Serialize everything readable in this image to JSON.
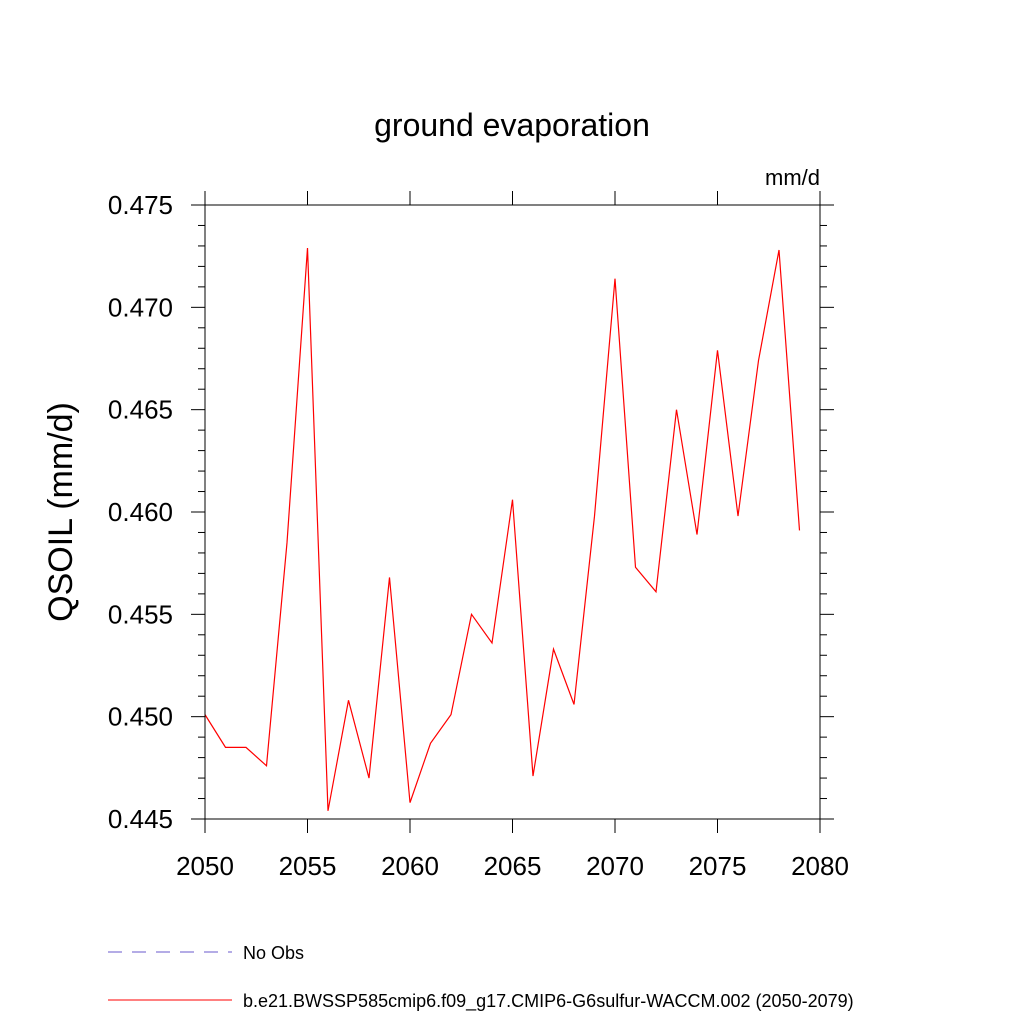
{
  "chart_data": {
    "type": "line",
    "title": "ground evaporation",
    "units_label": "mm/d",
    "xlabel": "",
    "ylabel": "QSOIL  (mm/d)",
    "xlim": [
      2050,
      2080
    ],
    "ylim": [
      0.445,
      0.475
    ],
    "x_ticks": [
      2050,
      2055,
      2060,
      2065,
      2070,
      2075,
      2080
    ],
    "x_tick_labels": [
      "2050",
      "2055",
      "2060",
      "2065",
      "2070",
      "2075",
      "2080"
    ],
    "y_ticks": [
      0.445,
      0.45,
      0.455,
      0.46,
      0.465,
      0.47,
      0.475
    ],
    "y_tick_labels": [
      "0.445",
      "0.450",
      "0.455",
      "0.460",
      "0.465",
      "0.470",
      "0.475"
    ],
    "grid": false,
    "legend_position": "bottom",
    "series": [
      {
        "name": "b.e21.BWSSP585cmip6.f09_g17.CMIP6-G6sulfur-WACCM.002 (2050-2079)",
        "color": "#ff0000",
        "style": "solid",
        "x": [
          2050,
          2051,
          2052,
          2053,
          2054,
          2055,
          2056,
          2057,
          2058,
          2059,
          2060,
          2061,
          2062,
          2063,
          2064,
          2065,
          2066,
          2067,
          2068,
          2069,
          2070,
          2071,
          2072,
          2073,
          2074,
          2075,
          2076,
          2077,
          2078,
          2079
        ],
        "values": [
          0.4501,
          0.4485,
          0.4485,
          0.4476,
          0.4585,
          0.4729,
          0.4454,
          0.4508,
          0.447,
          0.4568,
          0.4458,
          0.4487,
          0.4501,
          0.455,
          0.4536,
          0.4606,
          0.4471,
          0.4533,
          0.4506,
          0.4598,
          0.4714,
          0.4573,
          0.4561,
          0.465,
          0.4589,
          0.4679,
          0.4598,
          0.4674,
          0.4728,
          0.4591
        ]
      }
    ],
    "legend": [
      {
        "label": "No Obs",
        "color": "#6a5acd",
        "style": "dashed"
      },
      {
        "label": "b.e21.BWSSP585cmip6.f09_g17.CMIP6-G6sulfur-WACCM.002 (2050-2079)",
        "color": "#ff0000",
        "style": "solid"
      }
    ]
  }
}
